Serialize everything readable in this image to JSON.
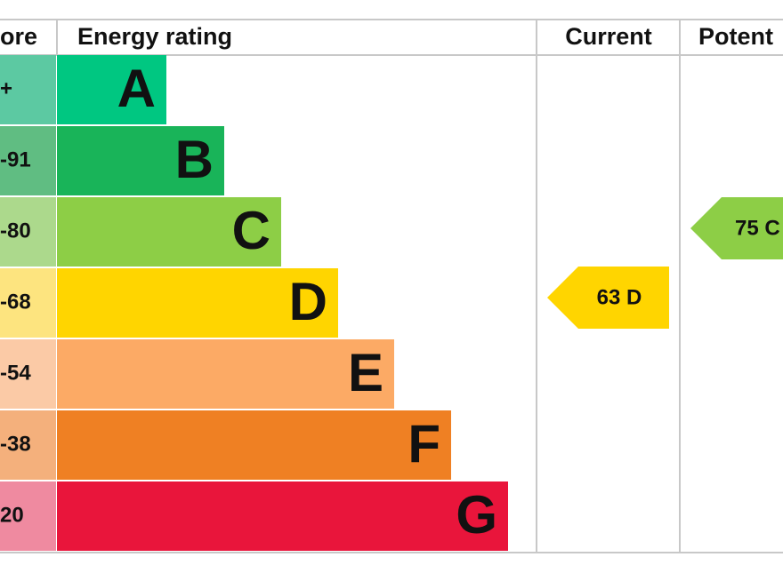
{
  "header": {
    "score": "ore",
    "rating": "Energy rating",
    "current": "Current",
    "potential": "Potent"
  },
  "bands": [
    {
      "score": "+",
      "letter": "A",
      "color": "#00c781",
      "score_color": "#5cc9a2"
    },
    {
      "score": "-91",
      "letter": "B",
      "color": "#19b459",
      "score_color": "#60bd82"
    },
    {
      "score": "-80",
      "letter": "C",
      "color": "#8dce46",
      "score_color": "#acd98c"
    },
    {
      "score": "-68",
      "letter": "D",
      "color": "#ffd500",
      "score_color": "#fde47f"
    },
    {
      "score": "-54",
      "letter": "E",
      "color": "#fcaa65",
      "score_color": "#fbcaa6"
    },
    {
      "score": "-38",
      "letter": "F",
      "color": "#ef8023",
      "score_color": "#f4b07c"
    },
    {
      "score": "20",
      "letter": "G",
      "color": "#e9153b",
      "score_color": "#ef8aa0"
    }
  ],
  "current": {
    "label": "63 D",
    "color": "#ffd500"
  },
  "potential": {
    "label": "75 C",
    "color": "#8dce46"
  }
}
